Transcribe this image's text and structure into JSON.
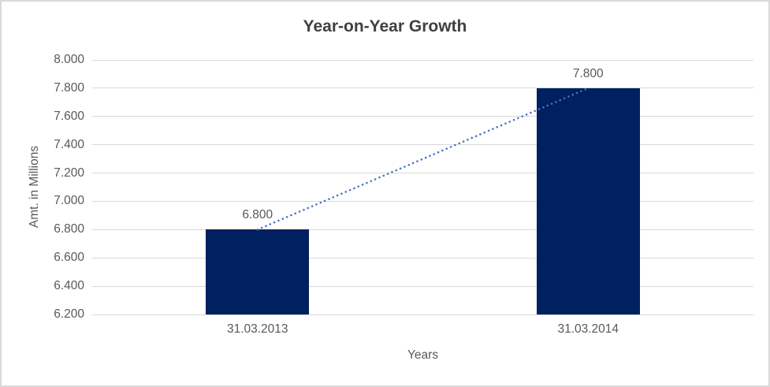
{
  "chart_data": {
    "type": "bar",
    "title": "Year-on-Year Growth",
    "xlabel": "Years",
    "ylabel": "Amt. in Millions",
    "categories": [
      "31.03.2013",
      "31.03.2014"
    ],
    "values": [
      6.8,
      7.8
    ],
    "data_labels": [
      "6.800",
      "7.800"
    ],
    "ylim": [
      6.2,
      8.0
    ],
    "ytick_step": 0.2,
    "yticks": [
      "8.000",
      "7.800",
      "7.600",
      "7.400",
      "7.200",
      "7.000",
      "6.800",
      "6.600",
      "6.400",
      "6.200"
    ],
    "grid": true,
    "legend": "none",
    "trendline": true,
    "colors": {
      "bar": "#002060",
      "trendline": "#4472c4",
      "gridline": "#d9d9d9",
      "title_text": "#404040",
      "axis_text": "#595959",
      "border": "#d9d9d9",
      "background": "#ffffff"
    }
  }
}
